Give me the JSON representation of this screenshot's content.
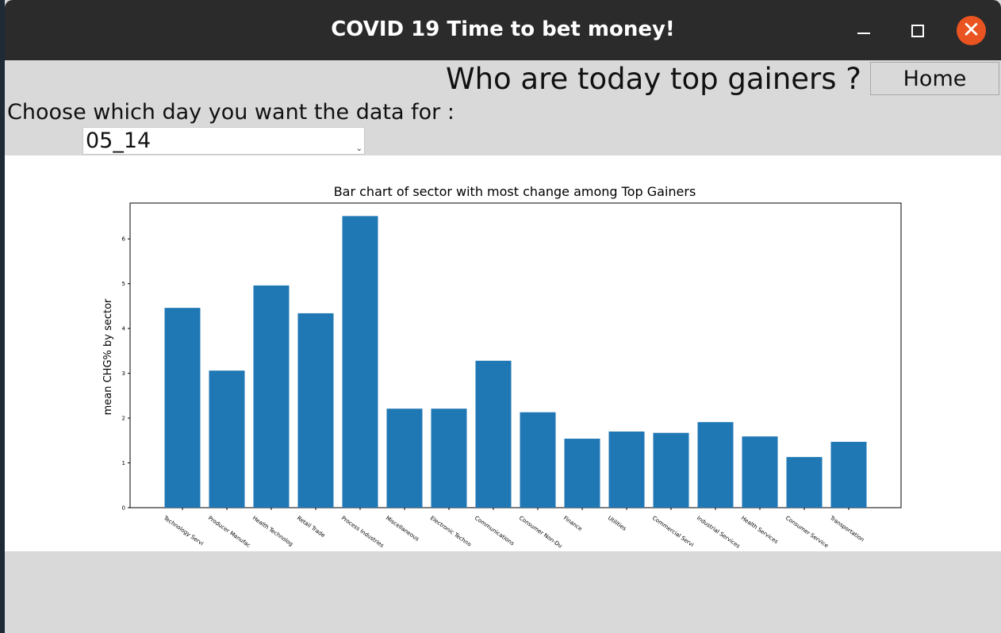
{
  "window": {
    "title": "COVID 19 Time to bet money!",
    "close_glyph": "✕"
  },
  "page": {
    "heading": "Who are today top gainers ?",
    "home_label": "Home",
    "prompt": "Choose which day you want the data for :",
    "day_value": "05_14",
    "dropdown_arrow": "⌄"
  },
  "colors": {
    "bar": "#1f77b4",
    "close": "#e95420",
    "titlebar": "#2b2b2b"
  },
  "chart_data": {
    "type": "bar",
    "title": "Bar chart of sector with most change among Top Gainers",
    "ylabel": "mean CHG% by sector",
    "xlabel": "",
    "ylim": [
      0,
      6.8
    ],
    "yticks": [
      0,
      1,
      2,
      3,
      4,
      5,
      6
    ],
    "grid": false,
    "categories": [
      "Technology Servi",
      "Producer Manufac",
      "Health Technolog",
      "Retail Trade",
      "Process Industries",
      "Miscellaneous",
      "Electronic Techno",
      "Communications",
      "Consumer Non-Du",
      "Finance",
      "Utilities",
      "Commercial Servi",
      "Industrial Services",
      "Health Services",
      "Consumer Service",
      "Transportation"
    ],
    "values": [
      4.46,
      3.06,
      4.96,
      4.34,
      6.51,
      2.21,
      2.21,
      3.28,
      2.13,
      1.54,
      1.7,
      1.67,
      1.91,
      1.59,
      1.13,
      1.47
    ]
  }
}
